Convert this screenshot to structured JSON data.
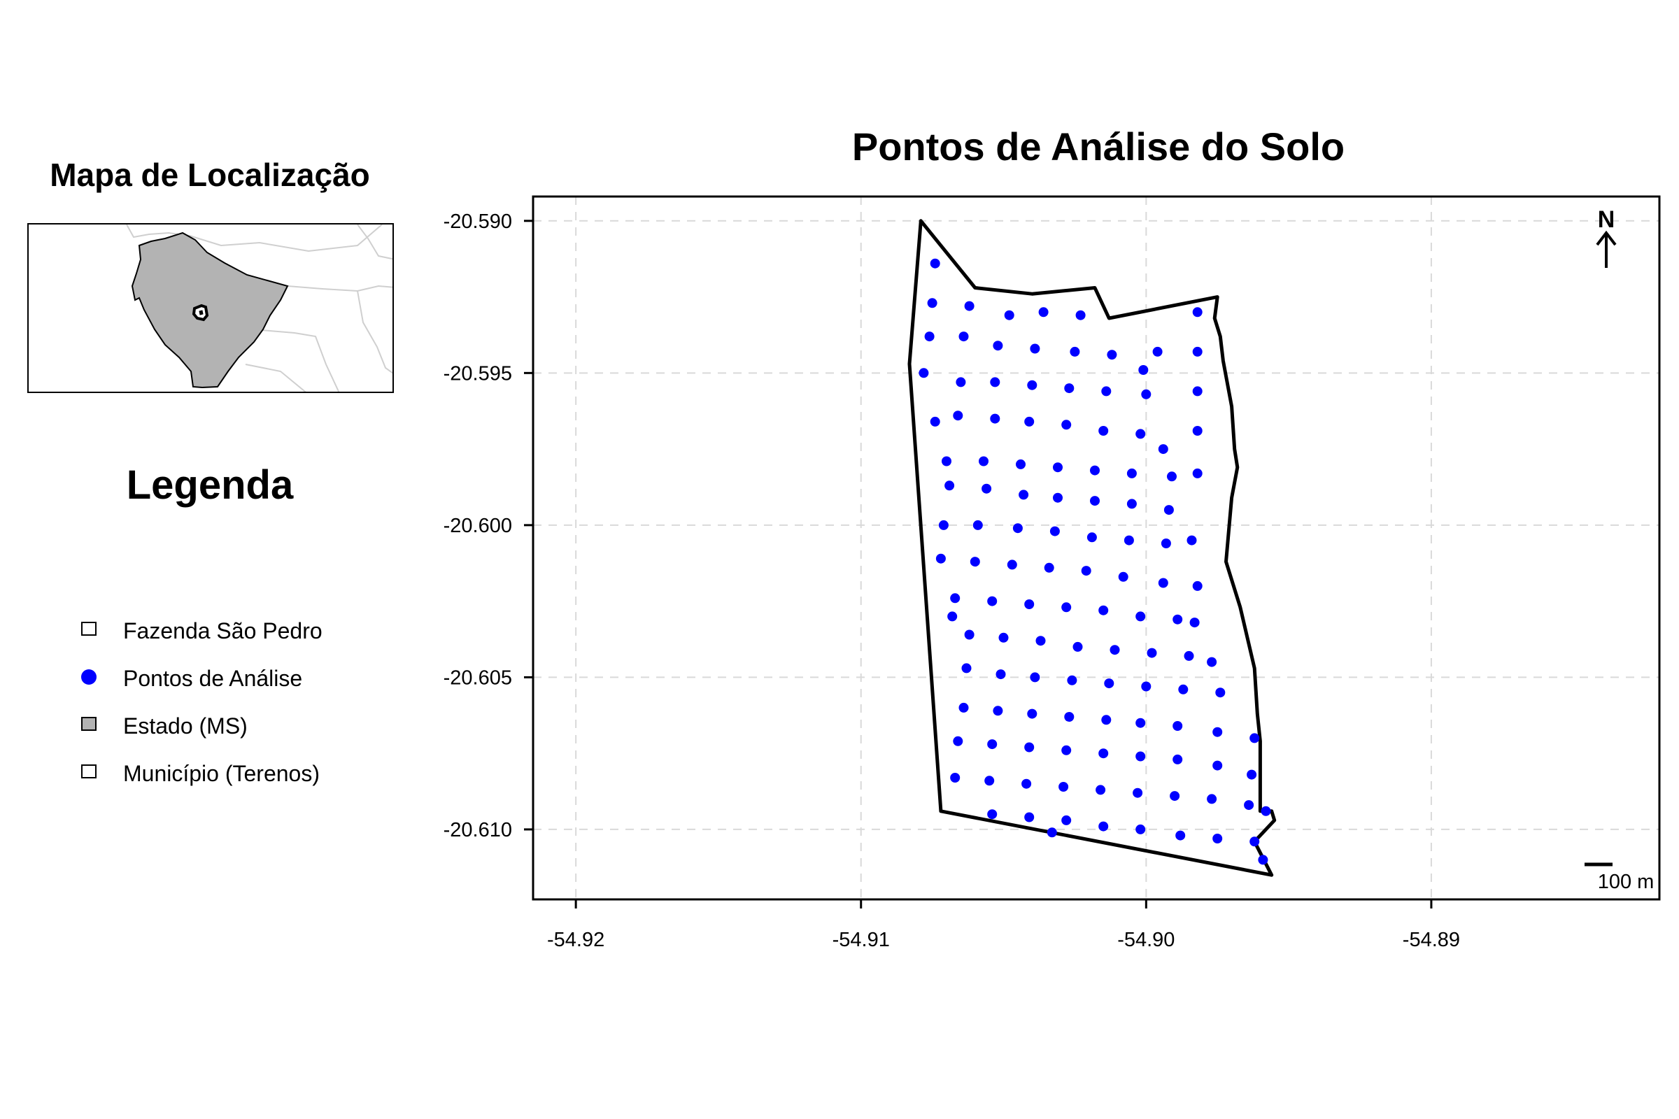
{
  "inset": {
    "title": "Mapa de Localização"
  },
  "legend": {
    "title": "Legenda",
    "items": [
      {
        "label": "Fazenda São Pedro",
        "symbol": "open-square"
      },
      {
        "label": "Pontos de Análise",
        "symbol": "blue-dot"
      },
      {
        "label": "Estado (MS)",
        "symbol": "gray-square"
      },
      {
        "label": "Município (Terenos)",
        "symbol": "open-square"
      }
    ]
  },
  "map": {
    "title": "Pontos de Análise do Solo",
    "north_label": "N",
    "scale_label": "100 m",
    "x_ticks": [
      "-54.92",
      "-54.91",
      "-54.90",
      "-54.89"
    ],
    "y_ticks": [
      "-20.590",
      "-20.595",
      "-20.600",
      "-20.605",
      "-20.610"
    ],
    "colors": {
      "points": "#0000ff",
      "boundary": "#000000",
      "state_fill": "#b3b3b3",
      "grid": "#d9d9d9"
    }
  },
  "chart_data": {
    "type": "scatter",
    "title": "Pontos de Análise do Solo",
    "xlabel": "",
    "ylabel": "",
    "xlim": [
      -54.9215,
      -54.882
    ],
    "ylim": [
      -20.6123,
      -20.5892
    ],
    "grid": true,
    "x_ticks": [
      -54.92,
      -54.91,
      -54.9,
      -54.89
    ],
    "y_ticks": [
      -20.59,
      -20.595,
      -20.6,
      -20.605,
      -20.61
    ],
    "boundary": [
      [
        -54.9079,
        -20.59
      ],
      [
        -54.906,
        -20.5922
      ],
      [
        -54.904,
        -20.5924
      ],
      [
        -54.9018,
        -20.5922
      ],
      [
        -54.9013,
        -20.5932
      ],
      [
        -54.8975,
        -20.5925
      ],
      [
        -54.8976,
        -20.5932
      ],
      [
        -54.8974,
        -20.5938
      ],
      [
        -54.8973,
        -20.5946
      ],
      [
        -54.897,
        -20.5961
      ],
      [
        -54.8969,
        -20.5975
      ],
      [
        -54.8968,
        -20.5981
      ],
      [
        -54.897,
        -20.5991
      ],
      [
        -54.8972,
        -20.6012
      ],
      [
        -54.8967,
        -20.6027
      ],
      [
        -54.8962,
        -20.6047
      ],
      [
        -54.8961,
        -20.6062
      ],
      [
        -54.896,
        -20.6071
      ],
      [
        -54.896,
        -20.6094
      ],
      [
        -54.8956,
        -20.6094
      ],
      [
        -54.8955,
        -20.6097
      ],
      [
        -54.8962,
        -20.6104
      ],
      [
        -54.8956,
        -20.6115
      ],
      [
        -54.9072,
        -20.6094
      ],
      [
        -54.9083,
        -20.5947
      ],
      [
        -54.9079,
        -20.59
      ]
    ],
    "points": [
      [
        -54.9074,
        -20.5914
      ],
      [
        -54.9075,
        -20.5927
      ],
      [
        -54.9062,
        -20.5928
      ],
      [
        -54.9048,
        -20.5931
      ],
      [
        -54.9036,
        -20.593
      ],
      [
        -54.9023,
        -20.5931
      ],
      [
        -54.8982,
        -20.593
      ],
      [
        -54.9076,
        -20.5938
      ],
      [
        -54.9064,
        -20.5938
      ],
      [
        -54.9052,
        -20.5941
      ],
      [
        -54.9039,
        -20.5942
      ],
      [
        -54.9025,
        -20.5943
      ],
      [
        -54.9012,
        -20.5944
      ],
      [
        -54.8996,
        -20.5943
      ],
      [
        -54.8982,
        -20.5943
      ],
      [
        -54.9078,
        -20.595
      ],
      [
        -54.9065,
        -20.5953
      ],
      [
        -54.9053,
        -20.5953
      ],
      [
        -54.904,
        -20.5954
      ],
      [
        -54.9027,
        -20.5955
      ],
      [
        -54.9014,
        -20.5956
      ],
      [
        -54.9001,
        -20.5949
      ],
      [
        -54.9,
        -20.5957
      ],
      [
        -54.8982,
        -20.5956
      ],
      [
        -54.9074,
        -20.5966
      ],
      [
        -54.9066,
        -20.5964
      ],
      [
        -54.9053,
        -20.5965
      ],
      [
        -54.9041,
        -20.5966
      ],
      [
        -54.9028,
        -20.5967
      ],
      [
        -54.9015,
        -20.5969
      ],
      [
        -54.9002,
        -20.597
      ],
      [
        -54.8982,
        -20.5969
      ],
      [
        -54.907,
        -20.5979
      ],
      [
        -54.9057,
        -20.5979
      ],
      [
        -54.9044,
        -20.598
      ],
      [
        -54.9031,
        -20.5981
      ],
      [
        -54.9018,
        -20.5982
      ],
      [
        -54.9005,
        -20.5983
      ],
      [
        -54.8994,
        -20.5975
      ],
      [
        -54.8991,
        -20.5984
      ],
      [
        -54.8982,
        -20.5983
      ],
      [
        -54.9069,
        -20.5987
      ],
      [
        -54.9056,
        -20.5988
      ],
      [
        -54.9043,
        -20.599
      ],
      [
        -54.9031,
        -20.5991
      ],
      [
        -54.9018,
        -20.5992
      ],
      [
        -54.9005,
        -20.5993
      ],
      [
        -54.8992,
        -20.5995
      ],
      [
        -54.9071,
        -20.6
      ],
      [
        -54.9059,
        -20.6
      ],
      [
        -54.9045,
        -20.6001
      ],
      [
        -54.9032,
        -20.6002
      ],
      [
        -54.9019,
        -20.6004
      ],
      [
        -54.9006,
        -20.6005
      ],
      [
        -54.8993,
        -20.6006
      ],
      [
        -54.8984,
        -20.6005
      ],
      [
        -54.9072,
        -20.6011
      ],
      [
        -54.906,
        -20.6012
      ],
      [
        -54.9047,
        -20.6013
      ],
      [
        -54.9034,
        -20.6014
      ],
      [
        -54.9021,
        -20.6015
      ],
      [
        -54.9008,
        -20.6017
      ],
      [
        -54.8994,
        -20.6019
      ],
      [
        -54.8982,
        -20.602
      ],
      [
        -54.9067,
        -20.6024
      ],
      [
        -54.9054,
        -20.6025
      ],
      [
        -54.9041,
        -20.6026
      ],
      [
        -54.9028,
        -20.6027
      ],
      [
        -54.9015,
        -20.6028
      ],
      [
        -54.9002,
        -20.603
      ],
      [
        -54.8989,
        -20.6031
      ],
      [
        -54.8983,
        -20.6032
      ],
      [
        -54.9068,
        -20.603
      ],
      [
        -54.9062,
        -20.6036
      ],
      [
        -54.905,
        -20.6037
      ],
      [
        -54.9037,
        -20.6038
      ],
      [
        -54.9024,
        -20.604
      ],
      [
        -54.9011,
        -20.6041
      ],
      [
        -54.8998,
        -20.6042
      ],
      [
        -54.8985,
        -20.6043
      ],
      [
        -54.8977,
        -20.6045
      ],
      [
        -54.9063,
        -20.6047
      ],
      [
        -54.9051,
        -20.6049
      ],
      [
        -54.9039,
        -20.605
      ],
      [
        -54.9026,
        -20.6051
      ],
      [
        -54.9013,
        -20.6052
      ],
      [
        -54.9,
        -20.6053
      ],
      [
        -54.8987,
        -20.6054
      ],
      [
        -54.8974,
        -20.6055
      ],
      [
        -54.9064,
        -20.606
      ],
      [
        -54.9052,
        -20.6061
      ],
      [
        -54.904,
        -20.6062
      ],
      [
        -54.9027,
        -20.6063
      ],
      [
        -54.9014,
        -20.6064
      ],
      [
        -54.9002,
        -20.6065
      ],
      [
        -54.8989,
        -20.6066
      ],
      [
        -54.8975,
        -20.6068
      ],
      [
        -54.8962,
        -20.607
      ],
      [
        -54.9066,
        -20.6071
      ],
      [
        -54.9054,
        -20.6072
      ],
      [
        -54.9041,
        -20.6073
      ],
      [
        -54.9028,
        -20.6074
      ],
      [
        -54.9015,
        -20.6075
      ],
      [
        -54.9002,
        -20.6076
      ],
      [
        -54.8989,
        -20.6077
      ],
      [
        -54.8975,
        -20.6079
      ],
      [
        -54.8963,
        -20.6082
      ],
      [
        -54.9067,
        -20.6083
      ],
      [
        -54.9055,
        -20.6084
      ],
      [
        -54.9042,
        -20.6085
      ],
      [
        -54.9029,
        -20.6086
      ],
      [
        -54.9016,
        -20.6087
      ],
      [
        -54.9003,
        -20.6088
      ],
      [
        -54.899,
        -20.6089
      ],
      [
        -54.8977,
        -20.609
      ],
      [
        -54.8964,
        -20.6092
      ],
      [
        -54.8958,
        -20.6094
      ],
      [
        -54.9054,
        -20.6095
      ],
      [
        -54.9041,
        -20.6096
      ],
      [
        -54.9028,
        -20.6097
      ],
      [
        -54.9015,
        -20.6099
      ],
      [
        -54.9002,
        -20.61
      ],
      [
        -54.8988,
        -20.6102
      ],
      [
        -54.8975,
        -20.6103
      ],
      [
        -54.8962,
        -20.6104
      ],
      [
        -54.8959,
        -20.611
      ],
      [
        -54.9033,
        -20.6101
      ]
    ]
  }
}
